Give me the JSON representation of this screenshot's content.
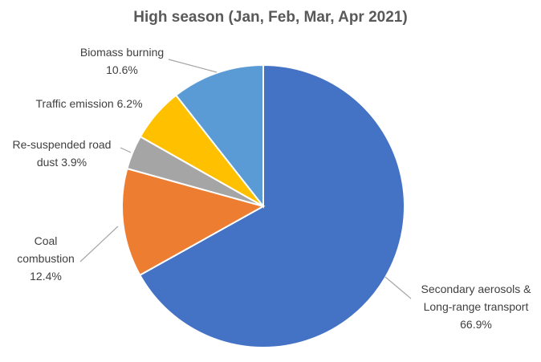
{
  "chart_data": {
    "type": "pie",
    "title": "High season (Jan, Feb, Mar, Apr 2021)",
    "categories": [
      "Secondary aerosols & Long-range transport",
      "Coal combustion",
      "Re-suspended road dust",
      "Traffic emission",
      "Biomass burning"
    ],
    "values": [
      66.9,
      12.4,
      3.9,
      6.2,
      10.6
    ],
    "value_labels": [
      "66.9%",
      "12.4%",
      "3.9%",
      "6.2%",
      "10.6%"
    ],
    "colors": [
      "#4472c4",
      "#ed7d31",
      "#a5a5a5",
      "#ffc000",
      "#5b9bd5"
    ]
  }
}
